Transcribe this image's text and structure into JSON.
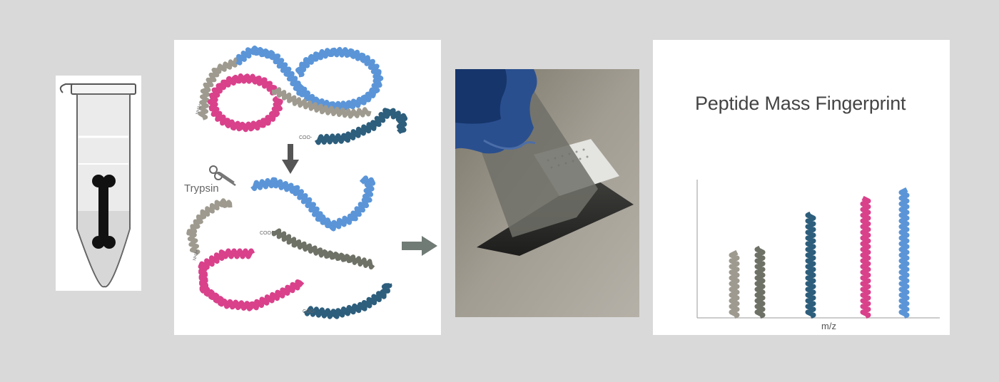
{
  "protein": {
    "enzyme_label": "Trypsin",
    "n_term": "NH3+",
    "c_term": "COO-"
  },
  "pmf": {
    "title": "Peptide Mass Fingerprint",
    "x_axis": "m/z"
  },
  "colors": {
    "background": "#d9d9d9",
    "grey": "#9e9a8f",
    "olive": "#6e7166",
    "pink": "#d9418b",
    "light_blue": "#5b95d8",
    "dark_teal": "#2d5e7c",
    "arrow": "#6f7b74"
  },
  "icons": [
    "microtube-icon",
    "bone-icon",
    "scissors-icon",
    "arrow-down-icon",
    "arrow-right-icon"
  ]
}
